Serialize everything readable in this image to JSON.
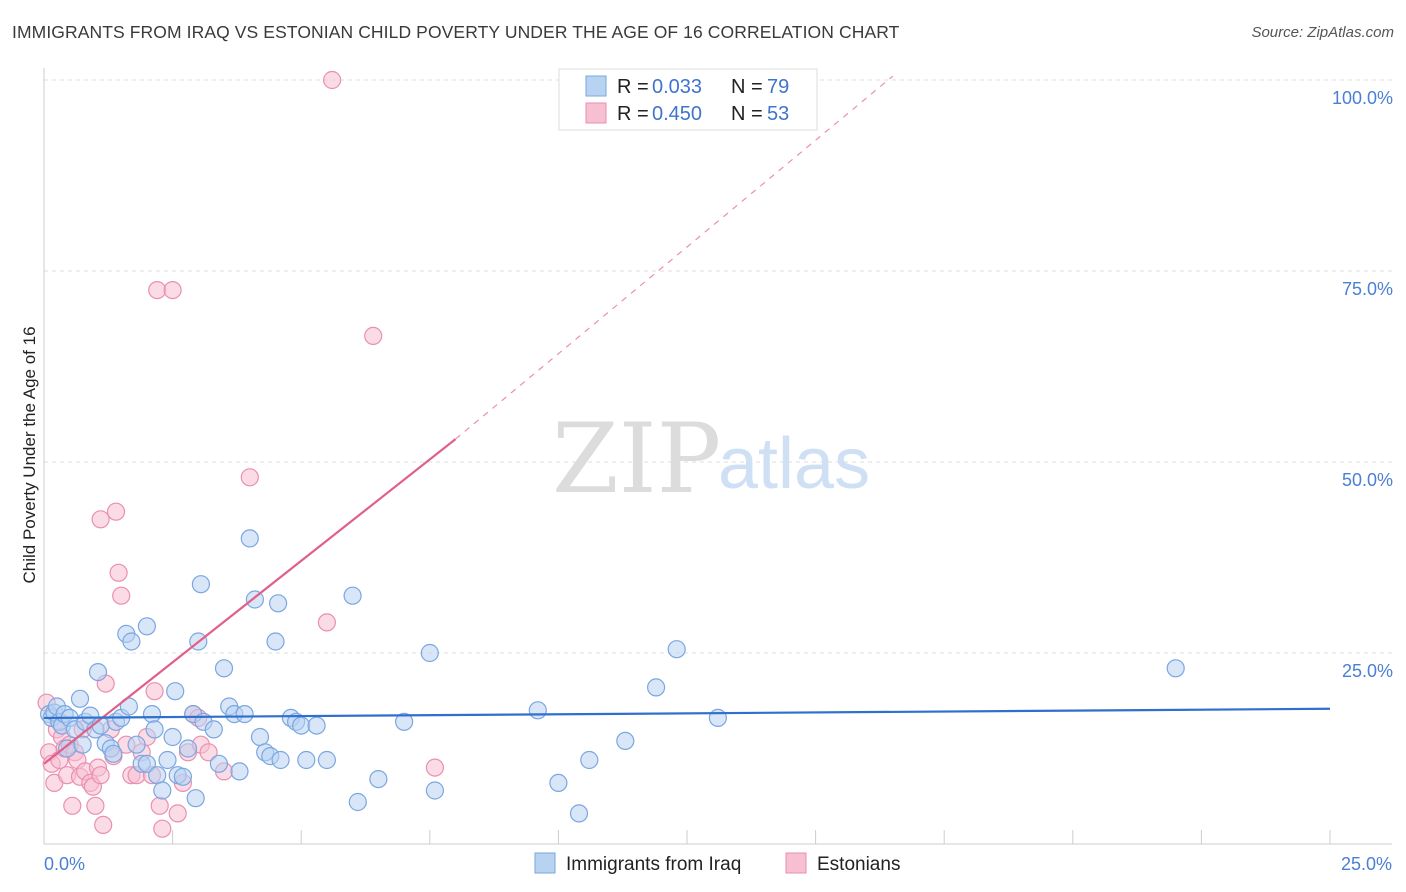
{
  "title": "IMMIGRANTS FROM IRAQ VS ESTONIAN CHILD POVERTY UNDER THE AGE OF 16 CORRELATION CHART",
  "source": "Source: ZipAtlas.com",
  "watermark": {
    "zip": "ZIP",
    "atlas": "atlas"
  },
  "colors": {
    "blue_fill": "#b8d2f2",
    "blue_stroke": "#7aa7e0",
    "blue_line": "#2f6fce",
    "pink_fill": "#f7bfd2",
    "pink_stroke": "#ea8fb0",
    "pink_line": "#e0608a",
    "tick_text": "#4a7fd4",
    "grid": "#dddddd"
  },
  "legend": {
    "r_label": "R =",
    "n_label": "N =",
    "entries": [
      {
        "r": "0.033",
        "n": "79"
      },
      {
        "r": "0.450",
        "n": "53"
      }
    ]
  },
  "chart_data": {
    "type": "scatter",
    "title": "IMMIGRANTS FROM IRAQ VS ESTONIAN CHILD POVERTY UNDER THE AGE OF 16 CORRELATION CHART",
    "xlabel": "",
    "ylabel": "Child Poverty Under the Age of 16",
    "xlim": [
      0,
      25
    ],
    "ylim": [
      0,
      100
    ],
    "x_tick_labels": [
      "0.0%",
      "25.0%"
    ],
    "y_ticks": [
      25,
      50,
      75,
      100
    ],
    "y_tick_labels": [
      "25.0%",
      "50.0%",
      "75.0%",
      "100.0%"
    ],
    "grid": true,
    "legend_position": "top-center",
    "series": [
      {
        "name": "Immigrants from Iraq",
        "color": "blue",
        "r": 0.033,
        "n": 79,
        "trend": {
          "x0": 0,
          "y0": 16.5,
          "x1": 25,
          "y1": 17.7
        },
        "points": [
          [
            0.1,
            17.0
          ],
          [
            0.15,
            16.5
          ],
          [
            0.2,
            17.2
          ],
          [
            0.25,
            18.0
          ],
          [
            0.3,
            16.0
          ],
          [
            0.35,
            15.5
          ],
          [
            0.4,
            17.0
          ],
          [
            0.45,
            12.5
          ],
          [
            0.5,
            16.5
          ],
          [
            0.6,
            15.0
          ],
          [
            0.7,
            19.0
          ],
          [
            0.75,
            13.0
          ],
          [
            0.8,
            16.0
          ],
          [
            0.9,
            16.8
          ],
          [
            1.0,
            15.0
          ],
          [
            1.05,
            22.5
          ],
          [
            1.1,
            15.5
          ],
          [
            1.2,
            13.2
          ],
          [
            1.3,
            12.5
          ],
          [
            1.35,
            11.8
          ],
          [
            1.4,
            16.0
          ],
          [
            1.5,
            16.5
          ],
          [
            1.6,
            27.5
          ],
          [
            1.65,
            18.0
          ],
          [
            1.7,
            26.5
          ],
          [
            1.8,
            13.0
          ],
          [
            1.9,
            10.5
          ],
          [
            2.0,
            10.5
          ],
          [
            2.0,
            28.5
          ],
          [
            2.1,
            17.0
          ],
          [
            2.15,
            15.0
          ],
          [
            2.2,
            9.0
          ],
          [
            2.3,
            7.0
          ],
          [
            2.4,
            11.0
          ],
          [
            2.5,
            14.0
          ],
          [
            2.55,
            20.0
          ],
          [
            2.6,
            9.0
          ],
          [
            2.7,
            8.8
          ],
          [
            2.8,
            12.5
          ],
          [
            2.9,
            17.0
          ],
          [
            2.95,
            6.0
          ],
          [
            3.0,
            26.5
          ],
          [
            3.05,
            34.0
          ],
          [
            3.1,
            16.0
          ],
          [
            3.3,
            15.0
          ],
          [
            3.4,
            10.5
          ],
          [
            3.5,
            23.0
          ],
          [
            3.6,
            18.0
          ],
          [
            3.7,
            17.0
          ],
          [
            3.8,
            9.5
          ],
          [
            3.9,
            17.0
          ],
          [
            4.0,
            40.0
          ],
          [
            4.1,
            32.0
          ],
          [
            4.2,
            14.0
          ],
          [
            4.3,
            12.0
          ],
          [
            4.4,
            11.5
          ],
          [
            4.5,
            26.5
          ],
          [
            4.55,
            31.5
          ],
          [
            4.6,
            11.0
          ],
          [
            4.8,
            16.5
          ],
          [
            4.9,
            16.0
          ],
          [
            5.0,
            15.5
          ],
          [
            5.1,
            11.0
          ],
          [
            5.3,
            15.5
          ],
          [
            5.5,
            11.0
          ],
          [
            6.0,
            32.5
          ],
          [
            6.1,
            5.5
          ],
          [
            6.5,
            8.5
          ],
          [
            7.0,
            16.0
          ],
          [
            7.5,
            25.0
          ],
          [
            7.6,
            7.0
          ],
          [
            9.6,
            17.5
          ],
          [
            10.0,
            8.0
          ],
          [
            10.4,
            4.0
          ],
          [
            10.6,
            11.0
          ],
          [
            11.3,
            13.5
          ],
          [
            11.9,
            20.5
          ],
          [
            12.3,
            25.5
          ],
          [
            13.1,
            16.5
          ],
          [
            22.0,
            23.0
          ]
        ]
      },
      {
        "name": "Estonians",
        "color": "pink",
        "r": 0.45,
        "n": 53,
        "trend": {
          "x0": 0,
          "y0": 10.5,
          "x1": 8,
          "y1": 53.0
        },
        "trend_extension": {
          "x0": 8,
          "y0": 53.0,
          "x1": 16.5,
          "y1": 100.5
        },
        "points": [
          [
            0.05,
            18.5
          ],
          [
            0.1,
            12.0
          ],
          [
            0.15,
            10.5
          ],
          [
            0.2,
            8.0
          ],
          [
            0.25,
            15.0
          ],
          [
            0.3,
            11.0
          ],
          [
            0.35,
            14.0
          ],
          [
            0.4,
            12.5
          ],
          [
            0.45,
            9.0
          ],
          [
            0.5,
            13.0
          ],
          [
            0.55,
            5.0
          ],
          [
            0.6,
            12.0
          ],
          [
            0.65,
            11.0
          ],
          [
            0.7,
            8.8
          ],
          [
            0.75,
            15.0
          ],
          [
            0.8,
            9.5
          ],
          [
            0.9,
            8.0
          ],
          [
            0.95,
            7.5
          ],
          [
            1.0,
            5.0
          ],
          [
            1.05,
            10.0
          ],
          [
            1.1,
            9.0
          ],
          [
            1.1,
            42.5
          ],
          [
            1.15,
            2.5
          ],
          [
            1.2,
            21.0
          ],
          [
            1.3,
            15.0
          ],
          [
            1.35,
            11.5
          ],
          [
            1.4,
            43.5
          ],
          [
            1.45,
            35.5
          ],
          [
            1.5,
            32.5
          ],
          [
            1.6,
            13.0
          ],
          [
            1.7,
            9.0
          ],
          [
            1.8,
            9.0
          ],
          [
            1.9,
            12.0
          ],
          [
            2.0,
            14.0
          ],
          [
            2.1,
            9.0
          ],
          [
            2.15,
            20.0
          ],
          [
            2.2,
            72.5
          ],
          [
            2.25,
            5.0
          ],
          [
            2.3,
            2.0
          ],
          [
            2.5,
            72.5
          ],
          [
            2.6,
            4.0
          ],
          [
            2.7,
            8.0
          ],
          [
            2.8,
            12.0
          ],
          [
            2.9,
            17.0
          ],
          [
            3.0,
            16.5
          ],
          [
            3.05,
            13.0
          ],
          [
            3.2,
            12.0
          ],
          [
            3.5,
            9.5
          ],
          [
            4.0,
            48.0
          ],
          [
            5.5,
            29.0
          ],
          [
            5.6,
            100.0
          ],
          [
            6.4,
            66.5
          ],
          [
            7.6,
            10.0
          ]
        ]
      }
    ]
  },
  "bottom_legend": [
    {
      "label": "Immigrants from Iraq"
    },
    {
      "label": "Estonians"
    }
  ]
}
